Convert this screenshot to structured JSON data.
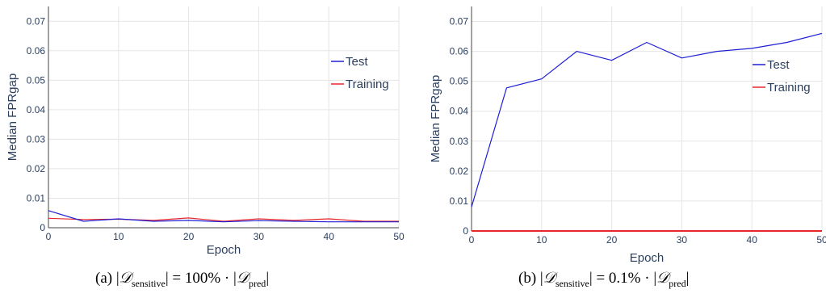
{
  "chart_data": [
    {
      "type": "line",
      "caption": {
        "prefix": "(a) |",
        "set1": "𝒟",
        "sub1": "sensitive",
        "middle": "| = 100% · |",
        "set2": "𝒟",
        "sub2": "pred",
        "suffix": "|"
      },
      "xlabel": "Epoch",
      "ylabel": "Median FPRgap",
      "xlim": [
        0,
        50
      ],
      "ylim": [
        0,
        0.075
      ],
      "xticks": [
        0,
        10,
        20,
        30,
        40,
        50
      ],
      "yticks": [
        0,
        0.01,
        0.02,
        0.03,
        0.04,
        0.05,
        0.06,
        0.07
      ],
      "ytick_labels": [
        "0",
        "0.01",
        "0.02",
        "0.03",
        "0.04",
        "0.05",
        "0.06",
        "0.07"
      ],
      "grid": true,
      "legend_position": "right",
      "series": [
        {
          "name": "Test",
          "color": "#1f1fd6",
          "x": [
            0,
            5,
            10,
            15,
            20,
            25,
            30,
            35,
            40,
            45,
            50
          ],
          "y": [
            0.0058,
            0.0022,
            0.003,
            0.0022,
            0.0025,
            0.002,
            0.0024,
            0.0022,
            0.002,
            0.002,
            0.002
          ]
        },
        {
          "name": "Training",
          "color": "#e8272c",
          "x": [
            0,
            5,
            10,
            15,
            20,
            25,
            30,
            35,
            40,
            45,
            50
          ],
          "y": [
            0.0032,
            0.0028,
            0.0029,
            0.0025,
            0.0033,
            0.0022,
            0.003,
            0.0025,
            0.003,
            0.0022,
            0.0022
          ]
        }
      ]
    },
    {
      "type": "line",
      "caption": {
        "prefix": "(b) |",
        "set1": "𝒟",
        "sub1": "sensitive",
        "middle": "| = 0.1% · |",
        "set2": "𝒟",
        "sub2": "pred",
        "suffix": "|"
      },
      "xlabel": "Epoch",
      "ylabel": "Median FPRgap",
      "xlim": [
        0,
        50
      ],
      "ylim": [
        0,
        0.075
      ],
      "xticks": [
        0,
        10,
        20,
        30,
        40,
        50
      ],
      "yticks": [
        0,
        0.01,
        0.02,
        0.03,
        0.04,
        0.05,
        0.06,
        0.07
      ],
      "ytick_labels": [
        "0",
        "0.01",
        "0.02",
        "0.03",
        "0.04",
        "0.05",
        "0.06",
        "0.07"
      ],
      "grid": true,
      "legend_position": "right",
      "series": [
        {
          "name": "Test",
          "color": "#1f1fd6",
          "x": [
            0,
            5,
            10,
            15,
            20,
            25,
            30,
            35,
            40,
            45,
            50
          ],
          "y": [
            0.008,
            0.0478,
            0.0508,
            0.06,
            0.057,
            0.063,
            0.0578,
            0.06,
            0.061,
            0.063,
            0.066
          ]
        },
        {
          "name": "Training",
          "color": "#e8272c",
          "x": [
            0,
            5,
            10,
            15,
            20,
            25,
            30,
            35,
            40,
            45,
            50
          ],
          "y": [
            0,
            0,
            0,
            0,
            0,
            0,
            0,
            0,
            0,
            0,
            0
          ]
        }
      ]
    }
  ]
}
